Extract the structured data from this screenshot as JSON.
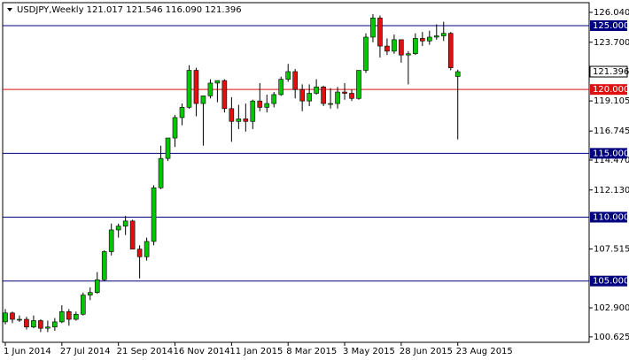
{
  "chart_data": {
    "type": "candlestick",
    "title": "USDJPY,Weekly  121.017 121.546 116.090 121.396",
    "categories": [
      "1 Jun 2014",
      null,
      null,
      null,
      null,
      null,
      null,
      null,
      "27 Jul 2014",
      null,
      null,
      null,
      null,
      null,
      null,
      null,
      "21 Sep 2014",
      null,
      null,
      null,
      null,
      null,
      null,
      null,
      "16 Nov 2014",
      null,
      null,
      null,
      null,
      null,
      null,
      null,
      "11 Jan 2015",
      null,
      null,
      null,
      null,
      null,
      null,
      null,
      "8 Mar 2015",
      null,
      null,
      null,
      null,
      null,
      null,
      null,
      "3 May 2015",
      null,
      null,
      null,
      null,
      null,
      null,
      null,
      "28 Jun 2015",
      null,
      null,
      null,
      null,
      null,
      null,
      null,
      "23 Aug 2015"
    ],
    "open": [
      101.8,
      102.5,
      102.0,
      102.0,
      101.4,
      101.9,
      101.3,
      101.4,
      101.8,
      102.6,
      102.0,
      102.4,
      103.9,
      104.1,
      105.1,
      107.3,
      109.0,
      109.3,
      109.7,
      107.5,
      106.9,
      108.1,
      112.3,
      114.6,
      116.2,
      117.8,
      118.6,
      121.5,
      118.9,
      119.5,
      120.5,
      120.7,
      118.5,
      117.5,
      117.7,
      117.5,
      119.1,
      118.6,
      118.9,
      119.6,
      120.8,
      121.4,
      120.0,
      119.1,
      119.7,
      120.2,
      118.9,
      118.9,
      119.8,
      119.7,
      119.3,
      121.5,
      124.1,
      125.6,
      123.4,
      123.0,
      123.9,
      122.7,
      122.8,
      124.0,
      123.8,
      124.1,
      124.2,
      124.4,
      121.017
    ],
    "high": [
      102.8,
      102.6,
      102.3,
      102.2,
      102.3,
      102.0,
      101.9,
      102.1,
      103.1,
      102.8,
      102.6,
      104.1,
      104.5,
      105.7,
      107.4,
      109.5,
      109.5,
      110.1,
      109.8,
      107.8,
      108.4,
      112.5,
      115.6,
      116.1,
      118.0,
      118.9,
      121.9,
      121.7,
      119.5,
      120.8,
      120.7,
      120.8,
      119.4,
      118.8,
      118.9,
      119.2,
      120.5,
      119.6,
      119.8,
      121.0,
      122.0,
      121.6,
      120.4,
      120.4,
      120.8,
      120.3,
      120.1,
      120.2,
      120.5,
      120.0,
      121.5,
      124.4,
      125.9,
      125.8,
      124.0,
      124.3,
      123.9,
      123.0,
      124.4,
      124.5,
      124.6,
      125.1,
      125.3,
      124.5,
      121.546
    ],
    "low": [
      101.6,
      101.7,
      101.8,
      101.2,
      101.3,
      101.0,
      101.0,
      101.1,
      101.7,
      101.5,
      101.9,
      102.3,
      103.5,
      104.0,
      105.0,
      107.0,
      108.4,
      108.6,
      107.5,
      105.2,
      106.6,
      107.8,
      112.2,
      114.4,
      115.5,
      117.2,
      118.5,
      117.9,
      115.6,
      119.3,
      119.0,
      118.2,
      115.9,
      116.9,
      116.7,
      116.9,
      118.3,
      118.2,
      118.6,
      119.5,
      120.6,
      119.3,
      118.3,
      118.7,
      119.6,
      118.7,
      118.5,
      118.5,
      119.2,
      119.1,
      119.2,
      121.3,
      123.7,
      122.5,
      122.7,
      122.8,
      122.1,
      120.4,
      122.7,
      123.4,
      123.5,
      123.9,
      123.8,
      121.5,
      116.09
    ],
    "close": [
      102.5,
      102.0,
      102.0,
      101.4,
      101.9,
      101.3,
      101.4,
      101.8,
      102.6,
      102.0,
      102.4,
      103.9,
      104.1,
      105.1,
      107.3,
      109.0,
      109.3,
      109.7,
      107.5,
      106.9,
      108.1,
      112.3,
      114.6,
      116.2,
      117.8,
      118.6,
      121.5,
      118.9,
      119.5,
      120.5,
      120.7,
      118.5,
      117.5,
      117.7,
      117.5,
      119.1,
      118.6,
      118.9,
      119.6,
      120.8,
      121.4,
      120.0,
      119.1,
      119.7,
      120.2,
      118.9,
      118.9,
      119.8,
      119.7,
      119.3,
      121.5,
      124.1,
      125.6,
      123.4,
      123.0,
      123.9,
      122.7,
      122.8,
      124.0,
      123.8,
      124.1,
      124.2,
      124.4,
      121.7,
      121.396
    ],
    "up_color": "#00c800",
    "down_color": "#e01010",
    "ylim": [
      100.2,
      126.8
    ],
    "yticks": [
      {
        "value": 126.04,
        "label": "126.040"
      },
      {
        "value": 123.7,
        "label": "123.700"
      },
      {
        "value": 119.105,
        "label": "119.105"
      },
      {
        "value": 116.745,
        "label": "116.745"
      },
      {
        "value": 114.47,
        "label": "114.470"
      },
      {
        "value": 112.13,
        "label": "112.130"
      },
      {
        "value": 107.515,
        "label": "107.515"
      },
      {
        "value": 102.9,
        "label": "102.900"
      },
      {
        "value": 100.625,
        "label": "100.625"
      }
    ],
    "hlines": [
      {
        "value": 125,
        "label": "125.000",
        "color": "#000080"
      },
      {
        "value": 120,
        "label": "120.000",
        "color": "#e01010"
      },
      {
        "value": 115,
        "label": "115.000",
        "color": "#000080"
      },
      {
        "value": 110,
        "label": "110.000",
        "color": "#000080"
      },
      {
        "value": 105,
        "label": "105.000",
        "color": "#000080"
      }
    ]
  }
}
